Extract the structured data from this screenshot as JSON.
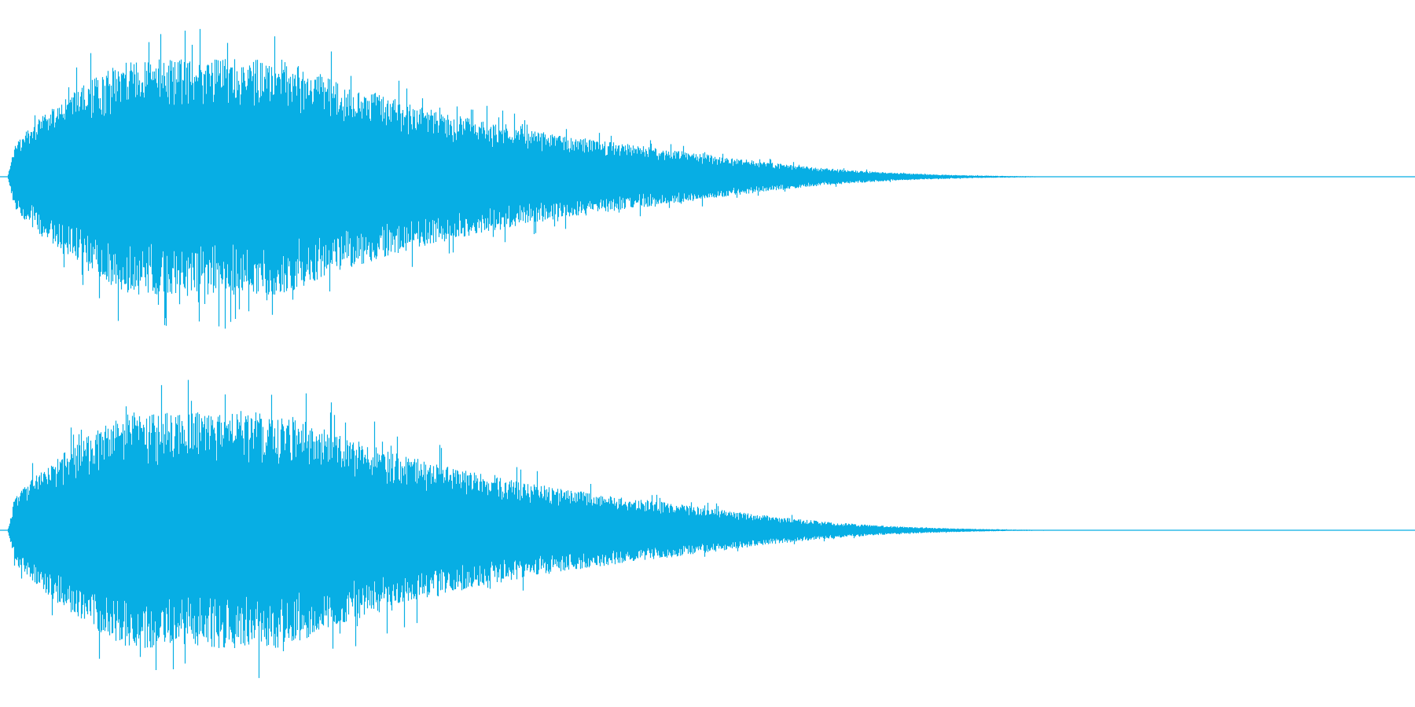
{
  "waveform": {
    "color": "#07aee4"
  }
}
